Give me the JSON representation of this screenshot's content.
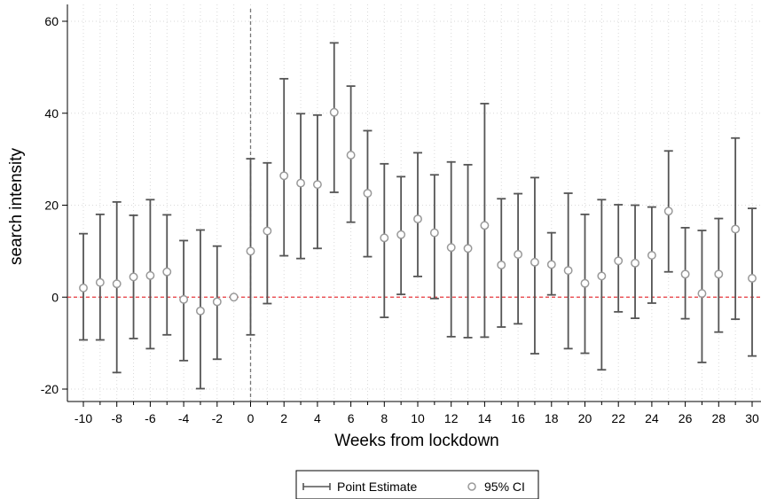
{
  "chart_data": {
    "type": "scatter",
    "xlabel": "Weeks from lockdown",
    "ylabel": "search intensity",
    "xlim": [
      -10,
      30
    ],
    "ylim": [
      -20,
      60
    ],
    "x_ticks": [
      -10,
      -8,
      -6,
      -4,
      -2,
      0,
      2,
      4,
      6,
      8,
      10,
      12,
      14,
      16,
      18,
      20,
      22,
      24,
      26,
      28,
      30
    ],
    "y_ticks": [
      -20,
      0,
      20,
      40,
      60
    ],
    "grid": true,
    "reference_lines": {
      "vertical_x": 0,
      "horizontal_y": 0,
      "horizontal_color": "#e8383d",
      "vertical_color": "#777777"
    },
    "legend": {
      "placement": "bottom-center",
      "entries": [
        "Point Estimate",
        "95% CI"
      ]
    },
    "series": [
      {
        "x": [
          -10,
          -9,
          -8,
          -7,
          -6,
          -5,
          -4,
          -3,
          -2,
          -1,
          0,
          1,
          2,
          3,
          4,
          5,
          6,
          7,
          8,
          9,
          10,
          11,
          12,
          13,
          14,
          15,
          16,
          17,
          18,
          19,
          20,
          21,
          22,
          23,
          24,
          25,
          26,
          27,
          28,
          29,
          30
        ],
        "estimate": [
          2,
          3.2,
          2.9,
          4.4,
          4.7,
          5.5,
          -0.5,
          -3,
          -1,
          0,
          10,
          14.4,
          26.4,
          24.8,
          24.5,
          40.2,
          30.9,
          22.6,
          12.9,
          13.6,
          17,
          14,
          10.8,
          10.6,
          15.6,
          7,
          9.3,
          7.6,
          7.1,
          5.8,
          3,
          4.6,
          7.9,
          7.4,
          9.1,
          18.7,
          5,
          0.8,
          5,
          14.8,
          4.1
        ],
        "lower": [
          -9.3,
          -9.3,
          -16.4,
          -9,
          -11.2,
          -8.2,
          -13.8,
          -19.9,
          -13.5,
          0,
          -8.2,
          -1.4,
          9,
          8.4,
          10.6,
          22.8,
          16.3,
          8.8,
          -4.4,
          0.6,
          4.5,
          -0.3,
          -8.6,
          -8.8,
          -8.7,
          -6.5,
          -5.8,
          -12.3,
          0.5,
          -11.2,
          -12.2,
          -15.8,
          -3.2,
          -4.6,
          -1.3,
          5.5,
          -4.7,
          -14.2,
          -7.6,
          -4.8,
          -12.8
        ],
        "upper": [
          13.8,
          18,
          20.7,
          17.8,
          21.2,
          17.9,
          12.3,
          14.6,
          11.1,
          0,
          30.1,
          29.2,
          47.5,
          39.9,
          39.6,
          55.3,
          45.9,
          36.2,
          29,
          26.2,
          31.4,
          26.6,
          29.4,
          28.8,
          42.1,
          21.4,
          22.5,
          26,
          14,
          22.6,
          18,
          21.2,
          20.1,
          20,
          19.6,
          31.8,
          15.1,
          14.5,
          17.1,
          34.6,
          19.3
        ]
      }
    ]
  },
  "colors": {
    "estimate_marker": "#999999",
    "interval": "#555555",
    "grid": "#d9d9d9"
  }
}
